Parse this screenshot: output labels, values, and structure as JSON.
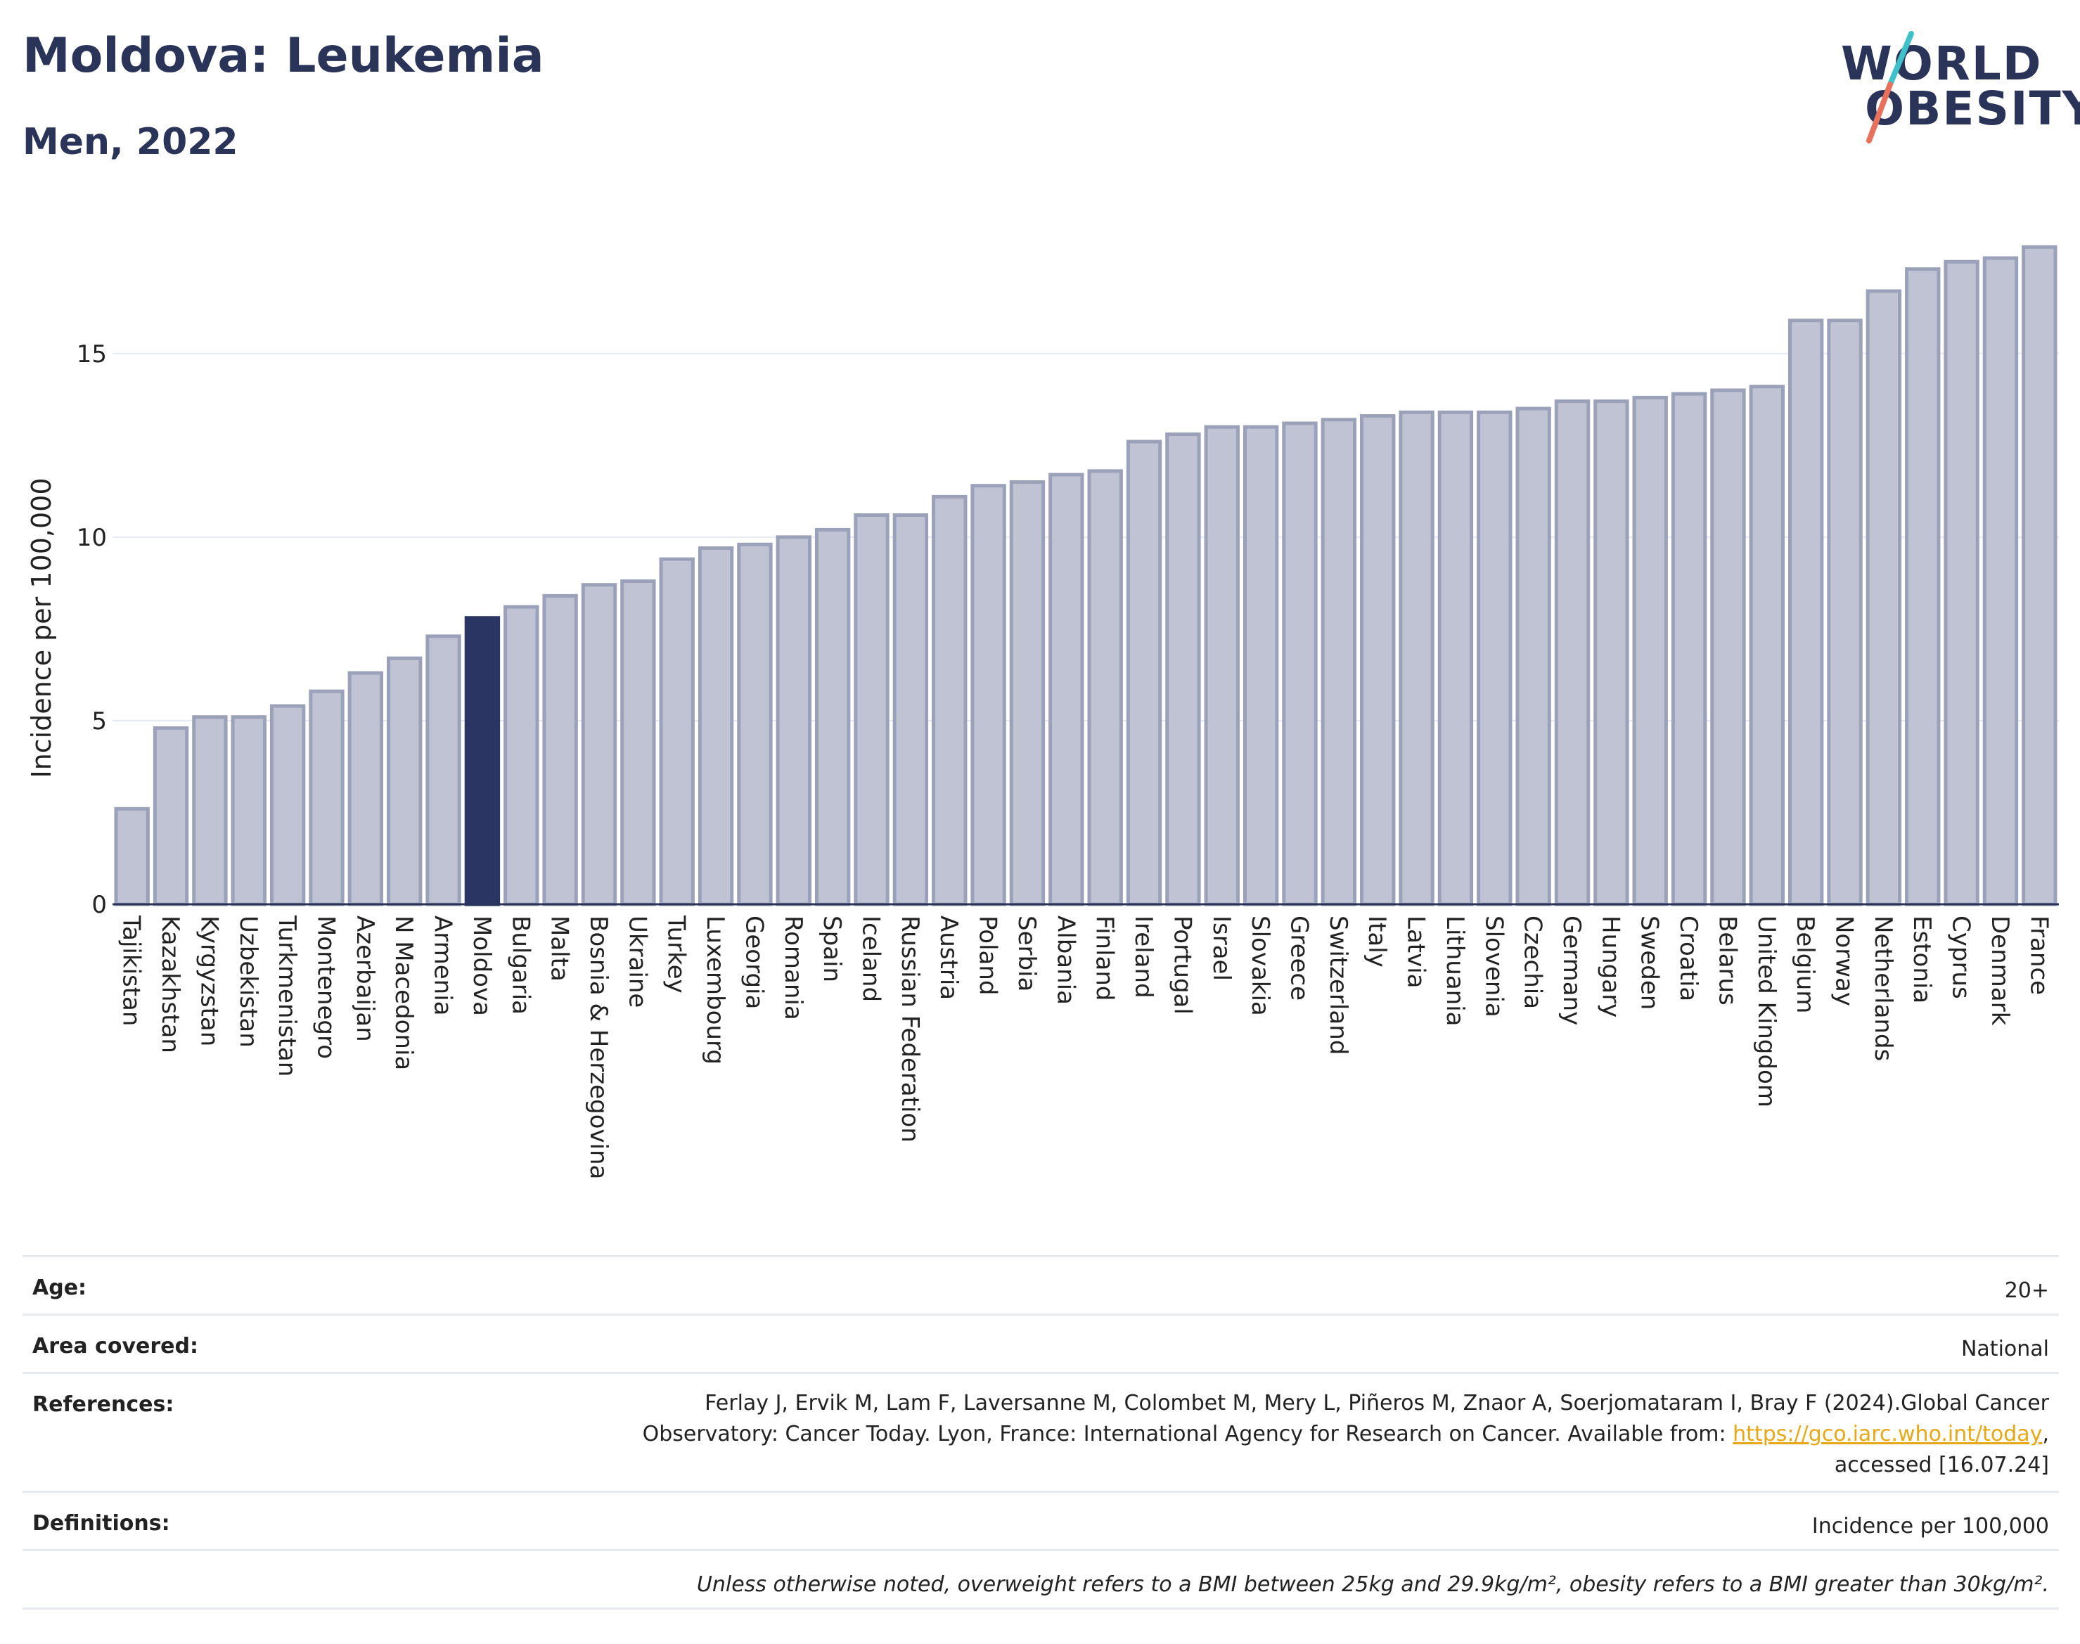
{
  "header": {
    "title": "Moldova: Leukemia",
    "subtitle": "Men, 2022"
  },
  "logo": {
    "line1": "WORLD",
    "line2": "OBESITY",
    "slash_colors": [
      "#3ec1c9",
      "#e8715c"
    ]
  },
  "colors": {
    "bar": "#bfc3d3",
    "bar_border": "#9ba1b9",
    "highlight": "#2a3563",
    "grid": "#e6e9f0",
    "axis": "#2a3358",
    "text": "#222222",
    "link": "#e6a817"
  },
  "chart_data": {
    "type": "bar",
    "title": "Moldova: Leukemia",
    "subtitle": "Men, 2022",
    "ylabel": "Incidence per 100,000",
    "xlabel": "",
    "ylim": [
      0,
      18.5
    ],
    "yticks": [
      0,
      5,
      10,
      15
    ],
    "grid": true,
    "highlight": "Moldova",
    "categories": [
      "Tajikistan",
      "Kazakhstan",
      "Kyrgyzstan",
      "Uzbekistan",
      "Turkmenistan",
      "Montenegro",
      "Azerbaijan",
      "N Macedonia",
      "Armenia",
      "Moldova",
      "Bulgaria",
      "Malta",
      "Bosnia & Herzegovina",
      "Ukraine",
      "Turkey",
      "Luxembourg",
      "Georgia",
      "Romania",
      "Spain",
      "Iceland",
      "Russian Federation",
      "Austria",
      "Poland",
      "Serbia",
      "Albania",
      "Finland",
      "Ireland",
      "Portugal",
      "Israel",
      "Slovakia",
      "Greece",
      "Switzerland",
      "Italy",
      "Latvia",
      "Lithuania",
      "Slovenia",
      "Czechia",
      "Germany",
      "Hungary",
      "Sweden",
      "Croatia",
      "Belarus",
      "United Kingdom",
      "Belgium",
      "Norway",
      "Netherlands",
      "Estonia",
      "Cyprus",
      "Denmark",
      "France"
    ],
    "values": [
      2.6,
      4.8,
      5.1,
      5.1,
      5.4,
      5.8,
      6.3,
      6.7,
      7.3,
      7.8,
      8.1,
      8.4,
      8.7,
      8.8,
      9.4,
      9.7,
      9.8,
      10.0,
      10.2,
      10.6,
      10.6,
      11.1,
      11.4,
      11.5,
      11.7,
      11.8,
      12.6,
      12.8,
      13.0,
      13.0,
      13.1,
      13.2,
      13.3,
      13.4,
      13.4,
      13.4,
      13.5,
      13.7,
      13.7,
      13.8,
      13.9,
      14.0,
      14.1,
      15.9,
      15.9,
      16.7,
      17.3,
      17.5,
      17.6,
      17.9
    ]
  },
  "footer": {
    "age": {
      "label": "Age:",
      "value": "20+"
    },
    "area": {
      "label": "Area covered:",
      "value": "National"
    },
    "references": {
      "label": "References:",
      "line1": "Ferlay J, Ervik M, Lam F, Laversanne M, Colombet M, Mery L, Piñeros M, Znaor A, Soerjomataram I, Bray F (2024).Global Cancer",
      "line2_pre": "Observatory: Cancer Today. Lyon, France: International Agency for Research on Cancer. Available from: ",
      "link": "https://gco.iarc.who.int/today",
      "line2_post": ",",
      "line3": "accessed [16.07.24]"
    },
    "definitions": {
      "label": "Definitions:",
      "value": "Incidence per 100,000"
    },
    "note": "Unless otherwise noted, overweight refers to a BMI between 25kg and 29.9kg/m², obesity refers to a BMI greater than 30kg/m²."
  }
}
